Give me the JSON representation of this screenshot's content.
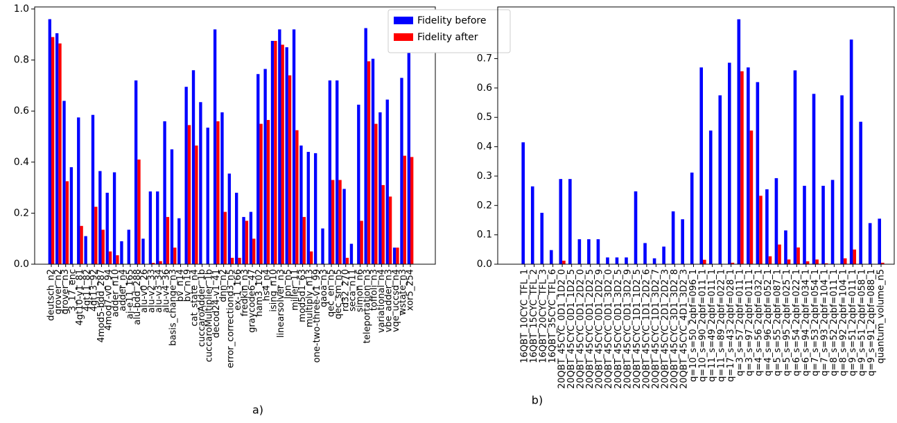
{
  "chart_data": [
    {
      "type": "bar",
      "caption": "a)",
      "categories": [
        "deutsch_n2",
        "grover_n2",
        "grover_n3",
        "3_17_enc",
        "4gt10-v1_81",
        "4gt11_82",
        "4gt13_92",
        "4mod5-bdd_287",
        "4mod7-v0_94",
        "adder_n10",
        "adder_n4",
        "aj-e11_165",
        "alu-bdd_288",
        "alu-v0_26",
        "alu-v2_33",
        "alu-v3_34",
        "alu-v4_36",
        "basis_change_n3",
        "bv_n14",
        "bv_n19",
        "cat_state_n4",
        "cuccaroAdder_1b",
        "cuccaroMultiplier_1b",
        "decod24-v1_41",
        "dnn_n2",
        "error_correctiond3_n5",
        "ex-1_166",
        "fredkin_n3",
        "graycode6_47",
        "ham3_102",
        "hs4_n4",
        "ising_n10",
        "linearsolver_n3",
        "lpn_n5",
        "miller_11",
        "mod5d1_63",
        "multiply_n13",
        "one-two-three-v1_99",
        "qaoa_n3",
        "qec_en_n5",
        "qec_sm_n5",
        "rd32_270",
        "seca_n11",
        "simon_n6",
        "teleportation_n3",
        "toffoli_n3",
        "variational_n4",
        "vbe_adder_n3",
        "vqe_uccsd_n4",
        "wstate_n3",
        "xor5_254"
      ],
      "series": [
        {
          "name": "Fidelity before",
          "color": "#0000ff",
          "values": [
            0.96,
            0.905,
            0.64,
            0.38,
            0.575,
            0.11,
            0.585,
            0.365,
            0.28,
            0.36,
            0.09,
            0.135,
            0.72,
            0.1,
            0.285,
            0.285,
            0.56,
            0.45,
            0.18,
            0.695,
            0.76,
            0.635,
            0.535,
            0.92,
            0.595,
            0.355,
            0.28,
            0.185,
            0.205,
            0.745,
            0.765,
            0.875,
            0.92,
            0.85,
            0.92,
            0.465,
            0.44,
            0.435,
            0.14,
            0.72,
            0.72,
            0.295,
            0.08,
            0.625,
            0.925,
            0.805,
            0.595,
            0.645,
            0.065,
            0.73,
            0.83
          ]
        },
        {
          "name": "Fidelity after",
          "color": "#ff0000",
          "values": [
            0.89,
            0.865,
            0.325,
            0,
            0.15,
            0,
            0.225,
            0.135,
            0.05,
            0.035,
            0,
            0,
            0.41,
            0,
            0.005,
            0.012,
            0.185,
            0.065,
            0,
            0.545,
            0.465,
            0,
            0,
            0.56,
            0.205,
            0.025,
            0.025,
            0.17,
            0.1,
            0.55,
            0.565,
            0.875,
            0.86,
            0.74,
            0.525,
            0.185,
            0.05,
            0,
            0,
            0.33,
            0.33,
            0.025,
            0,
            0.17,
            0.795,
            0.55,
            0.31,
            0.265,
            0.065,
            0.425,
            0.42
          ]
        }
      ],
      "ylim": [
        0,
        1.008
      ],
      "yticks": [
        {
          "value": 0,
          "label": "0.0"
        },
        0.2,
        0.4,
        0.6,
        0.8,
        {
          "value": 1,
          "label": "1.0"
        }
      ],
      "legend": "upper right"
    },
    {
      "type": "bar",
      "caption": "b)",
      "categories": [
        "16QBT_10CYC_TFL_1",
        "16QBT_15CYC_TFL_2",
        "16QBT_20CYC_TFL_3",
        "16QBT_35CYC_TFL_6",
        "20QBT_45CYC_0D1_1D2_0",
        "20QBT_45CYC_0D1_1D2_5",
        "20QBT_45CYC_0D1_2D2_0",
        "20QBT_45CYC_0D1_2D2_5",
        "20QBT_45CYC_0D1_2D2_9",
        "20QBT_45CYC_0D1_3D2_0",
        "20QBT_45CYC_0D1_3D2_5",
        "20QBT_45CYC_0D1_3D2_9",
        "20QBT_45CYC_1D1_1D2_5",
        "20QBT_45CYC_1D1_2D2_6",
        "20QBT_45CYC_1D1_3D2_7",
        "20QBT_45CYC_2D1_2D2_3",
        "20QBT_45CYC_3D1_3D2_8",
        "20QBT_45CYC_4D1_3D2_3",
        "q=10_s=50_2qbf=096_1",
        "q=10_s=90_2qbf=011_1",
        "q=11_s=49_2qbf=011_1",
        "q=11_s=89_2qbf=022_1",
        "q=17_s=43_2qbf=028_1",
        "q=3_s=57_2qbf=011_1",
        "q=3_s=97_2qbf=011_1",
        "q=4_s=56_2qbf=032_1",
        "q=4_s=96_2qbf=052_1",
        "q=5_s=55_2qbf=087_1",
        "q=5_s=95_2qbf=025_1",
        "q=6_s=54_2qbf=022_1",
        "q=6_s=94_2qbf=034_1",
        "q=7_s=53_2qbf=054_1",
        "q=7_s=93_2qbf=104_1",
        "q=8_s=52_2qbf=011_1",
        "q=8_s=92_2qbf=104_1",
        "q=9_s=51_2qbf=011_1",
        "q=9_s=51_2qbf=058_1",
        "q=9_s=91_2qbf=088_1",
        "quantum_volume_n5"
      ],
      "series": [
        {
          "color": "#0000ff",
          "values": [
            0.415,
            0.265,
            0.175,
            0.048,
            0.29,
            0.29,
            0.085,
            0.085,
            0.085,
            0.023,
            0.023,
            0.023,
            0.248,
            0.072,
            0.02,
            0.06,
            0.18,
            0.153,
            0.312,
            0.67,
            0.455,
            0.575,
            0.686,
            0.834,
            0.67,
            0.62,
            0.255,
            0.293,
            0.115,
            0.66,
            0.267,
            0.58,
            0.267,
            0.287,
            0.575,
            0.765,
            0.485,
            0.14,
            0.155
          ]
        },
        {
          "color": "#ff0000",
          "values": [
            0,
            0,
            0,
            0,
            0.012,
            0,
            0,
            0,
            0,
            0,
            0,
            0,
            0,
            0,
            0,
            0,
            0,
            0,
            0,
            0.015,
            0,
            0,
            0.005,
            0.657,
            0.455,
            0.233,
            0.027,
            0.067,
            0.016,
            0.057,
            0.01,
            0.016,
            0.003,
            0,
            0.02,
            0.05,
            0,
            0,
            0.005
          ]
        }
      ],
      "ylim": [
        0,
        0.876
      ],
      "yticks": [
        {
          "value": 0,
          "label": "0.0"
        },
        0.1,
        0.2,
        0.3,
        0.4,
        0.5,
        0.6,
        0.7
      ]
    }
  ]
}
